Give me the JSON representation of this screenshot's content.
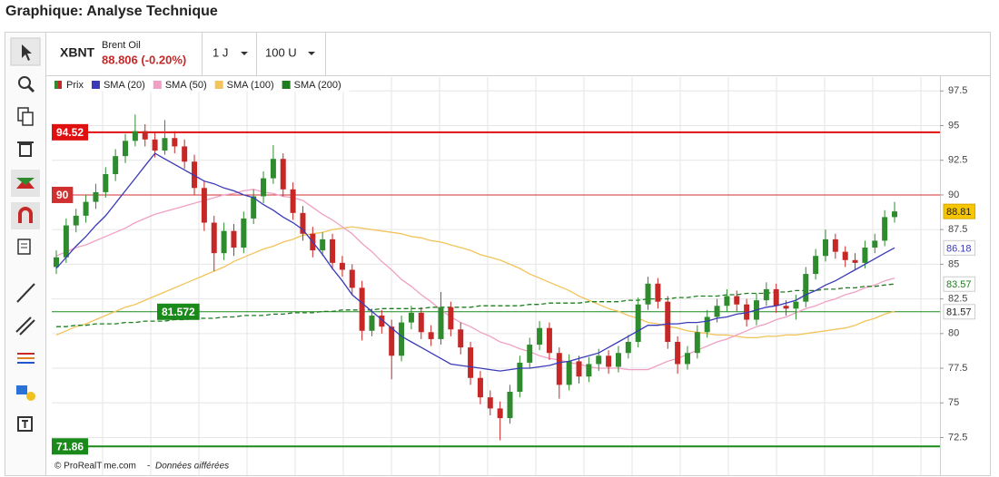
{
  "chart_data": {
    "type": "candlestick",
    "title": "Graphique: Analyse Technique",
    "symbol": "XBNT",
    "name": "Brent Oil",
    "quote": "88.806 (-0.20%)",
    "period": "1 J",
    "units": "100 U",
    "footer": {
      "source": "© ProRealTime.com",
      "separator": "-",
      "note": "Données différées"
    },
    "ylim": [
      70.7,
      98.5
    ],
    "yticks": [
      72.5,
      75,
      77.5,
      80,
      82.5,
      85,
      87.5,
      90,
      92.5,
      95,
      97.5
    ],
    "grid": true,
    "series": [
      {
        "name": "Prix",
        "type": "candlestick",
        "up_color": "#2e8b2e",
        "down_color": "#c62828",
        "last_label": "88.81",
        "ohlc": [
          [
            84.8,
            86.0,
            84.3,
            85.5
          ],
          [
            85.5,
            88.3,
            85.1,
            87.8
          ],
          [
            87.8,
            89.0,
            87.3,
            88.5
          ],
          [
            88.5,
            90.0,
            88.0,
            89.5
          ],
          [
            89.5,
            90.8,
            89.0,
            90.2
          ],
          [
            90.2,
            92.0,
            89.8,
            91.5
          ],
          [
            91.5,
            93.3,
            91.0,
            92.8
          ],
          [
            92.8,
            94.4,
            92.3,
            93.9
          ],
          [
            93.9,
            95.8,
            93.5,
            94.6
          ],
          [
            94.6,
            95.1,
            93.5,
            94.0
          ],
          [
            94.0,
            94.5,
            92.7,
            93.2
          ],
          [
            93.2,
            95.4,
            92.9,
            94.1
          ],
          [
            94.1,
            94.6,
            93.0,
            93.5
          ],
          [
            93.5,
            94.0,
            91.9,
            92.4
          ],
          [
            92.4,
            92.9,
            90.0,
            90.5
          ],
          [
            90.5,
            91.0,
            87.4,
            88.0
          ],
          [
            88.0,
            88.5,
            84.5,
            85.8
          ],
          [
            85.8,
            88.0,
            85.3,
            87.4
          ],
          [
            87.4,
            87.9,
            85.6,
            86.2
          ],
          [
            86.2,
            88.8,
            85.8,
            88.3
          ],
          [
            88.3,
            90.4,
            87.9,
            89.9
          ],
          [
            89.9,
            91.7,
            89.4,
            91.2
          ],
          [
            91.2,
            93.6,
            90.8,
            92.6
          ],
          [
            92.6,
            93.0,
            89.9,
            90.4
          ],
          [
            90.4,
            90.9,
            88.2,
            88.7
          ],
          [
            88.7,
            89.2,
            86.7,
            87.2
          ],
          [
            87.2,
            87.7,
            85.5,
            86.0
          ],
          [
            86.0,
            87.3,
            85.6,
            86.8
          ],
          [
            86.8,
            87.2,
            84.6,
            85.1
          ],
          [
            85.1,
            85.6,
            84.1,
            84.6
          ],
          [
            84.6,
            85.0,
            82.8,
            83.3
          ],
          [
            83.3,
            83.8,
            79.5,
            80.2
          ],
          [
            80.2,
            81.8,
            79.8,
            81.3
          ],
          [
            81.3,
            81.7,
            80.0,
            80.5
          ],
          [
            80.5,
            81.0,
            76.7,
            78.4
          ],
          [
            78.4,
            81.3,
            78.0,
            80.8
          ],
          [
            80.8,
            82.0,
            80.3,
            81.5
          ],
          [
            81.5,
            81.9,
            79.6,
            80.1
          ],
          [
            80.1,
            80.6,
            79.1,
            79.6
          ],
          [
            79.6,
            83.0,
            79.2,
            81.9
          ],
          [
            81.9,
            82.3,
            79.8,
            80.3
          ],
          [
            80.3,
            80.8,
            78.5,
            79.0
          ],
          [
            79.0,
            79.4,
            76.3,
            76.8
          ],
          [
            76.8,
            77.3,
            74.9,
            75.4
          ],
          [
            75.4,
            75.9,
            74.1,
            74.6
          ],
          [
            74.6,
            75.1,
            72.3,
            73.9
          ],
          [
            73.9,
            76.3,
            73.5,
            75.8
          ],
          [
            75.8,
            78.4,
            75.4,
            77.9
          ],
          [
            77.9,
            79.7,
            77.5,
            79.2
          ],
          [
            79.2,
            80.9,
            78.8,
            80.4
          ],
          [
            80.4,
            80.8,
            78.1,
            78.6
          ],
          [
            78.6,
            79.0,
            75.3,
            76.3
          ],
          [
            76.3,
            78.5,
            75.9,
            78.0
          ],
          [
            78.0,
            78.4,
            76.4,
            76.9
          ],
          [
            76.9,
            78.3,
            76.5,
            77.8
          ],
          [
            77.8,
            78.9,
            77.3,
            78.4
          ],
          [
            78.4,
            78.8,
            77.1,
            77.6
          ],
          [
            77.6,
            79.1,
            77.2,
            78.6
          ],
          [
            78.6,
            79.9,
            78.2,
            79.4
          ],
          [
            79.4,
            82.6,
            79.0,
            82.1
          ],
          [
            82.1,
            84.1,
            81.7,
            83.6
          ],
          [
            83.6,
            84.0,
            81.8,
            82.3
          ],
          [
            82.3,
            82.7,
            78.9,
            79.4
          ],
          [
            79.4,
            79.8,
            77.1,
            77.8
          ],
          [
            77.8,
            79.1,
            77.4,
            78.6
          ],
          [
            78.6,
            80.6,
            78.2,
            80.1
          ],
          [
            80.1,
            81.7,
            79.7,
            81.2
          ],
          [
            81.2,
            82.5,
            80.8,
            82.0
          ],
          [
            82.0,
            83.2,
            81.6,
            82.7
          ],
          [
            82.7,
            83.1,
            81.6,
            82.1
          ],
          [
            82.1,
            82.5,
            80.5,
            81.0
          ],
          [
            81.0,
            82.9,
            80.6,
            82.4
          ],
          [
            82.4,
            83.7,
            82.0,
            83.2
          ],
          [
            83.2,
            83.6,
            81.5,
            82.0
          ],
          [
            82.0,
            82.4,
            81.3,
            81.8
          ],
          [
            81.8,
            82.8,
            81.0,
            82.3
          ],
          [
            82.3,
            84.8,
            81.9,
            84.3
          ],
          [
            84.3,
            86.1,
            83.9,
            85.6
          ],
          [
            85.6,
            87.5,
            85.2,
            86.8
          ],
          [
            86.8,
            87.2,
            85.4,
            85.9
          ],
          [
            85.9,
            86.3,
            84.8,
            85.3
          ],
          [
            85.3,
            85.8,
            84.6,
            85.1
          ],
          [
            85.1,
            86.7,
            84.7,
            86.2
          ],
          [
            86.2,
            87.2,
            85.8,
            86.7
          ],
          [
            86.7,
            88.9,
            86.3,
            88.4
          ],
          [
            88.4,
            89.5,
            88.0,
            88.81
          ]
        ]
      },
      {
        "name": "SMA (20)",
        "type": "line",
        "color": "#3a3ab8",
        "last_label": "86.18",
        "values": [
          84.7,
          85.5,
          86.3,
          87.0,
          87.8,
          88.5,
          89.4,
          90.3,
          91.2,
          92.1,
          93.0,
          92.6,
          92.2,
          91.8,
          91.4,
          91.0,
          90.8,
          90.5,
          90.3,
          90.0,
          89.8,
          89.3,
          88.9,
          88.4,
          88.0,
          87.5,
          86.6,
          85.7,
          84.7,
          83.8,
          82.8,
          82.2,
          81.6,
          81.0,
          80.4,
          79.8,
          79.4,
          79.0,
          78.6,
          78.2,
          77.8,
          77.7,
          77.6,
          77.5,
          77.4,
          77.3,
          77.4,
          77.5,
          77.5,
          77.6,
          77.7,
          77.9,
          78.0,
          78.2,
          78.4,
          78.6,
          79.0,
          79.4,
          79.8,
          80.2,
          80.6,
          80.6,
          80.7,
          80.7,
          80.8,
          80.8,
          80.9,
          81.1,
          81.2,
          81.4,
          81.5,
          81.7,
          81.9,
          82.0,
          82.2,
          82.4,
          82.8,
          83.1,
          83.5,
          83.8,
          84.2,
          84.6,
          85.0,
          85.4,
          85.8,
          86.18
        ]
      },
      {
        "name": "SMA (50)",
        "type": "line",
        "color": "#f0a0c4",
        "values": [
          85.6,
          85.9,
          86.2,
          86.4,
          86.7,
          87.0,
          87.3,
          87.6,
          88.0,
          88.3,
          88.6,
          88.8,
          89.0,
          89.2,
          89.4,
          89.6,
          89.8,
          90.0,
          90.1,
          90.3,
          90.4,
          90.2,
          90.1,
          89.9,
          89.8,
          89.6,
          89.1,
          88.6,
          88.2,
          87.7,
          87.2,
          86.5,
          85.9,
          85.2,
          84.6,
          83.9,
          83.4,
          82.8,
          82.3,
          81.7,
          81.2,
          80.8,
          80.5,
          80.1,
          79.8,
          79.4,
          79.2,
          78.9,
          78.7,
          78.4,
          78.2,
          78.1,
          77.9,
          77.8,
          77.6,
          77.5,
          77.5,
          77.5,
          77.4,
          77.4,
          77.4,
          77.7,
          78.0,
          78.2,
          78.5,
          78.8,
          79.1,
          79.4,
          79.6,
          79.9,
          80.2,
          80.5,
          80.7,
          81.0,
          81.2,
          81.5,
          81.8,
          82.0,
          82.3,
          82.5,
          82.8,
          83.0,
          83.3,
          83.5,
          83.8,
          84.0
        ]
      },
      {
        "name": "SMA (100)",
        "type": "line",
        "color": "#f2c45a",
        "values": [
          79.9,
          80.2,
          80.5,
          80.7,
          81.0,
          81.3,
          81.6,
          81.9,
          82.1,
          82.4,
          82.7,
          83.0,
          83.3,
          83.6,
          83.9,
          84.2,
          84.5,
          84.8,
          85.2,
          85.5,
          85.8,
          86.1,
          86.3,
          86.6,
          86.8,
          87.1,
          87.2,
          87.3,
          87.5,
          87.6,
          87.7,
          87.6,
          87.5,
          87.4,
          87.3,
          87.2,
          87.0,
          86.9,
          86.7,
          86.6,
          86.4,
          86.2,
          86.0,
          85.7,
          85.5,
          85.3,
          85.0,
          84.7,
          84.3,
          84.0,
          83.7,
          83.4,
          83.1,
          82.7,
          82.4,
          82.1,
          81.8,
          81.6,
          81.3,
          81.1,
          80.8,
          80.7,
          80.5,
          80.4,
          80.2,
          80.1,
          80.0,
          79.9,
          79.9,
          79.8,
          79.7,
          79.7,
          79.8,
          79.8,
          79.9,
          79.9,
          80.0,
          80.1,
          80.2,
          80.3,
          80.4,
          80.6,
          80.9,
          81.1,
          81.4,
          81.6
        ]
      },
      {
        "name": "SMA (200)",
        "type": "line",
        "color": "#1e7d1e",
        "dashed": true,
        "last_label": "83.57",
        "values": [
          80.5,
          80.5,
          80.6,
          80.6,
          80.7,
          80.7,
          80.7,
          80.8,
          80.8,
          80.9,
          80.9,
          80.9,
          81.0,
          81.0,
          81.1,
          81.1,
          81.1,
          81.2,
          81.2,
          81.3,
          81.3,
          81.3,
          81.4,
          81.4,
          81.5,
          81.5,
          81.5,
          81.6,
          81.6,
          81.7,
          81.7,
          81.7,
          81.7,
          81.8,
          81.8,
          81.8,
          81.8,
          81.8,
          81.9,
          81.9,
          81.9,
          81.9,
          81.9,
          82.0,
          82.0,
          82.0,
          82.0,
          82.0,
          82.1,
          82.1,
          82.2,
          82.2,
          82.2,
          82.2,
          82.3,
          82.3,
          82.3,
          82.3,
          82.4,
          82.4,
          82.5,
          82.5,
          82.5,
          82.6,
          82.6,
          82.7,
          82.7,
          82.7,
          82.8,
          82.8,
          82.9,
          82.9,
          82.9,
          83.0,
          83.0,
          83.1,
          83.1,
          83.1,
          83.2,
          83.2,
          83.3,
          83.3,
          83.4,
          83.4,
          83.5,
          83.57
        ]
      }
    ],
    "levels": [
      {
        "value": 94.52,
        "label": "94.52",
        "color": "#e01010",
        "width": 2
      },
      {
        "value": 90,
        "label": "90",
        "color": "#d03030",
        "width": 1
      },
      {
        "value": 81.572,
        "label": "81.572",
        "right_label": "81.57",
        "color": "#1a8a1a",
        "width": 1
      },
      {
        "value": 71.86,
        "label": "71.86",
        "color": "#1a8a1a",
        "width": 2
      }
    ]
  }
}
